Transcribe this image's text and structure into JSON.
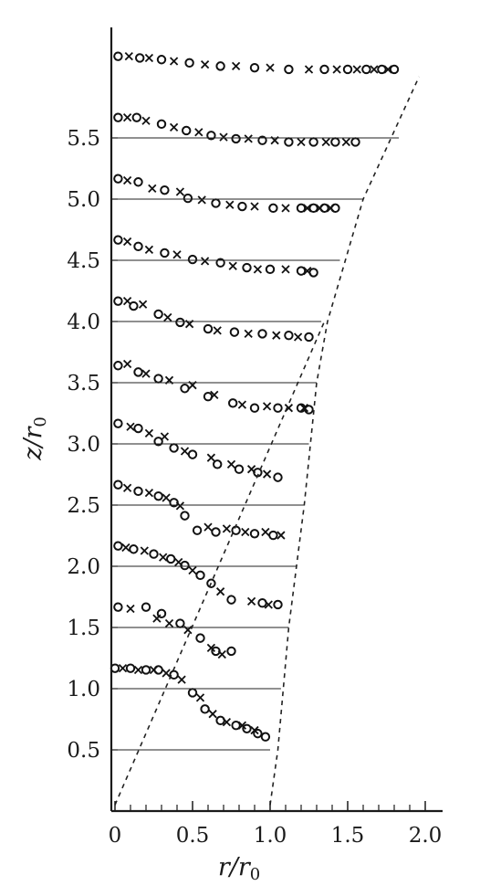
{
  "chart_data": {
    "type": "scatter",
    "xlabel": {
      "main": "r/r",
      "sub": "0"
    },
    "ylabel": {
      "main": "z/r",
      "sub": "0"
    },
    "xlim": [
      0,
      2.0
    ],
    "ylim": [
      0,
      6.3
    ],
    "x_ticks": [
      "0",
      "0.5",
      "1.0",
      "1.5",
      "2.0"
    ],
    "y_ticks": [
      "0.5",
      "1.0",
      "1.5",
      "2.0",
      "2.5",
      "3.0",
      "3.5",
      "4.0",
      "4.5",
      "5.0",
      "5.5"
    ],
    "grid": false,
    "profile_scale": 3.2,
    "profiles": [
      {
        "z": 0.5,
        "line_end_r": 1.0,
        "o": [
          [
            0.0,
            1.0
          ],
          [
            0.1,
            1.0
          ],
          [
            0.2,
            0.99
          ],
          [
            0.28,
            0.99
          ],
          [
            0.38,
            0.96
          ],
          [
            0.5,
            0.85
          ],
          [
            0.58,
            0.75
          ],
          [
            0.68,
            0.68
          ],
          [
            0.78,
            0.65
          ],
          [
            0.85,
            0.63
          ],
          [
            0.92,
            0.6
          ],
          [
            0.97,
            0.58
          ]
        ],
        "x": [
          [
            0.05,
            1.0
          ],
          [
            0.15,
            0.99
          ],
          [
            0.25,
            0.99
          ],
          [
            0.33,
            0.97
          ],
          [
            0.43,
            0.93
          ],
          [
            0.55,
            0.82
          ],
          [
            0.63,
            0.72
          ],
          [
            0.72,
            0.67
          ],
          [
            0.82,
            0.65
          ],
          [
            0.9,
            0.62
          ]
        ]
      },
      {
        "z": 1.0,
        "line_end_r": 1.07,
        "o": [
          [
            0.02,
            1.0
          ],
          [
            0.2,
            1.0
          ],
          [
            0.3,
            0.96
          ],
          [
            0.42,
            0.9
          ],
          [
            0.55,
            0.81
          ],
          [
            0.65,
            0.73
          ],
          [
            0.75,
            0.73
          ]
        ],
        "x": [
          [
            0.1,
            0.99
          ],
          [
            0.27,
            0.93
          ],
          [
            0.35,
            0.9
          ],
          [
            0.47,
            0.86
          ],
          [
            0.62,
            0.75
          ],
          [
            0.69,
            0.71
          ]
        ]
      },
      {
        "z": 1.5,
        "line_end_r": 1.12,
        "o": [
          [
            0.02,
            1.0
          ],
          [
            0.12,
            0.98
          ],
          [
            0.25,
            0.95
          ],
          [
            0.36,
            0.92
          ],
          [
            0.45,
            0.88
          ],
          [
            0.55,
            0.82
          ],
          [
            0.62,
            0.77
          ],
          [
            0.75,
            0.67
          ],
          [
            0.95,
            0.65
          ],
          [
            1.05,
            0.64
          ]
        ],
        "x": [
          [
            0.07,
            0.99
          ],
          [
            0.19,
            0.97
          ],
          [
            0.31,
            0.93
          ],
          [
            0.41,
            0.9
          ],
          [
            0.5,
            0.85
          ],
          [
            0.68,
            0.72
          ],
          [
            0.88,
            0.66
          ],
          [
            0.99,
            0.64
          ]
        ]
      },
      {
        "z": 2.0,
        "line_end_r": 1.17,
        "o": [
          [
            0.02,
            1.0
          ],
          [
            0.15,
            0.96
          ],
          [
            0.28,
            0.93
          ],
          [
            0.38,
            0.89
          ],
          [
            0.45,
            0.81
          ],
          [
            0.53,
            0.72
          ],
          [
            0.65,
            0.71
          ],
          [
            0.78,
            0.72
          ],
          [
            0.9,
            0.7
          ],
          [
            1.02,
            0.69
          ]
        ],
        "x": [
          [
            0.08,
            0.98
          ],
          [
            0.22,
            0.95
          ],
          [
            0.33,
            0.92
          ],
          [
            0.42,
            0.87
          ],
          [
            0.6,
            0.74
          ],
          [
            0.72,
            0.73
          ],
          [
            0.84,
            0.71
          ],
          [
            0.97,
            0.71
          ],
          [
            1.07,
            0.69
          ]
        ]
      },
      {
        "z": 2.5,
        "line_end_r": 1.22,
        "o": [
          [
            0.02,
            1.0
          ],
          [
            0.15,
            0.97
          ],
          [
            0.28,
            0.89
          ],
          [
            0.38,
            0.85
          ],
          [
            0.5,
            0.81
          ],
          [
            0.66,
            0.75
          ],
          [
            0.8,
            0.72
          ],
          [
            0.92,
            0.7
          ],
          [
            1.05,
            0.67
          ]
        ],
        "x": [
          [
            0.1,
            0.98
          ],
          [
            0.22,
            0.94
          ],
          [
            0.32,
            0.92
          ],
          [
            0.45,
            0.83
          ],
          [
            0.62,
            0.79
          ],
          [
            0.75,
            0.75
          ],
          [
            0.88,
            0.72
          ],
          [
            0.98,
            0.69
          ]
        ]
      },
      {
        "z": 3.0,
        "line_end_r": 1.25,
        "o": [
          [
            0.02,
            0.98
          ],
          [
            0.15,
            0.94
          ],
          [
            0.28,
            0.9
          ],
          [
            0.45,
            0.84
          ],
          [
            0.6,
            0.79
          ],
          [
            0.76,
            0.75
          ],
          [
            0.9,
            0.72
          ],
          [
            1.05,
            0.72
          ],
          [
            1.2,
            0.72
          ],
          [
            1.25,
            0.71
          ]
        ],
        "x": [
          [
            0.08,
            0.99
          ],
          [
            0.2,
            0.93
          ],
          [
            0.35,
            0.89
          ],
          [
            0.5,
            0.86
          ],
          [
            0.64,
            0.8
          ],
          [
            0.82,
            0.74
          ],
          [
            0.98,
            0.73
          ],
          [
            1.12,
            0.72
          ],
          [
            1.22,
            0.72
          ]
        ]
      },
      {
        "z": 3.5,
        "line_end_r": 1.3,
        "o": [
          [
            0.02,
            1.0
          ],
          [
            0.12,
            0.97
          ],
          [
            0.28,
            0.92
          ],
          [
            0.42,
            0.87
          ],
          [
            0.6,
            0.83
          ],
          [
            0.77,
            0.81
          ],
          [
            0.95,
            0.8
          ],
          [
            1.12,
            0.79
          ],
          [
            1.25,
            0.78
          ]
        ],
        "x": [
          [
            0.08,
            1.0
          ],
          [
            0.18,
            0.98
          ],
          [
            0.34,
            0.9
          ],
          [
            0.48,
            0.86
          ],
          [
            0.66,
            0.82
          ],
          [
            0.86,
            0.8
          ],
          [
            1.04,
            0.79
          ],
          [
            1.18,
            0.78
          ]
        ]
      },
      {
        "z": 4.0,
        "line_end_r": 1.33,
        "o": [
          [
            0.02,
            1.0
          ],
          [
            0.15,
            0.96
          ],
          [
            0.32,
            0.92
          ],
          [
            0.5,
            0.88
          ],
          [
            0.68,
            0.86
          ],
          [
            0.85,
            0.83
          ],
          [
            1.0,
            0.82
          ],
          [
            1.2,
            0.81
          ],
          [
            1.28,
            0.8
          ]
        ],
        "x": [
          [
            0.08,
            0.99
          ],
          [
            0.22,
            0.94
          ],
          [
            0.4,
            0.91
          ],
          [
            0.58,
            0.87
          ],
          [
            0.76,
            0.84
          ],
          [
            0.92,
            0.82
          ],
          [
            1.1,
            0.82
          ],
          [
            1.24,
            0.81
          ]
        ]
      },
      {
        "z": 4.5,
        "line_end_r": 1.45,
        "o": [
          [
            0.02,
            1.0
          ],
          [
            0.15,
            0.98
          ],
          [
            0.32,
            0.93
          ],
          [
            0.47,
            0.88
          ],
          [
            0.65,
            0.85
          ],
          [
            0.82,
            0.83
          ],
          [
            1.02,
            0.82
          ],
          [
            1.2,
            0.82
          ],
          [
            1.28,
            0.82
          ],
          [
            1.35,
            0.82
          ],
          [
            1.42,
            0.82
          ]
        ],
        "x": [
          [
            0.08,
            0.99
          ],
          [
            0.24,
            0.94
          ],
          [
            0.42,
            0.92
          ],
          [
            0.56,
            0.87
          ],
          [
            0.74,
            0.84
          ],
          [
            0.9,
            0.83
          ],
          [
            1.1,
            0.82
          ],
          [
            1.24,
            0.82
          ],
          [
            1.32,
            0.82
          ],
          [
            1.39,
            0.82
          ]
        ]
      },
      {
        "z": 5.0,
        "line_end_r": 1.6,
        "o": [
          [
            0.02,
            1.0
          ],
          [
            0.14,
            1.0
          ],
          [
            0.3,
            0.96
          ],
          [
            0.46,
            0.92
          ],
          [
            0.62,
            0.89
          ],
          [
            0.78,
            0.87
          ],
          [
            0.95,
            0.86
          ],
          [
            1.12,
            0.85
          ],
          [
            1.28,
            0.85
          ],
          [
            1.42,
            0.85
          ],
          [
            1.55,
            0.85
          ]
        ],
        "x": [
          [
            0.08,
            1.0
          ],
          [
            0.2,
            0.98
          ],
          [
            0.38,
            0.94
          ],
          [
            0.54,
            0.91
          ],
          [
            0.7,
            0.88
          ],
          [
            0.86,
            0.87
          ],
          [
            1.03,
            0.86
          ],
          [
            1.2,
            0.85
          ],
          [
            1.36,
            0.85
          ],
          [
            1.49,
            0.85
          ]
        ]
      },
      {
        "z": 5.5,
        "line_end_r": 1.83,
        "o": [
          [
            0.02,
            1.0
          ],
          [
            0.16,
            0.99
          ],
          [
            0.3,
            0.98
          ],
          [
            0.48,
            0.96
          ],
          [
            0.68,
            0.94
          ],
          [
            0.9,
            0.93
          ],
          [
            1.12,
            0.92
          ],
          [
            1.35,
            0.92
          ],
          [
            1.5,
            0.92
          ],
          [
            1.62,
            0.92
          ],
          [
            1.72,
            0.92
          ],
          [
            1.8,
            0.92
          ]
        ],
        "x": [
          [
            0.09,
            1.0
          ],
          [
            0.22,
            0.99
          ],
          [
            0.38,
            0.97
          ],
          [
            0.58,
            0.95
          ],
          [
            0.78,
            0.94
          ],
          [
            1.0,
            0.93
          ],
          [
            1.25,
            0.92
          ],
          [
            1.43,
            0.92
          ],
          [
            1.56,
            0.92
          ],
          [
            1.67,
            0.92
          ],
          [
            1.76,
            0.92
          ]
        ]
      }
    ],
    "inner_boundary": [
      [
        0.0,
        0.05
      ],
      [
        1.35,
        4.0
      ]
    ],
    "outer_boundary": [
      [
        1.0,
        0.05
      ],
      [
        1.05,
        0.5
      ],
      [
        1.12,
        1.5
      ],
      [
        1.22,
        2.5
      ],
      [
        1.3,
        3.5
      ],
      [
        1.37,
        4.0
      ],
      [
        1.6,
        5.0
      ],
      [
        1.96,
        6.0
      ]
    ]
  }
}
